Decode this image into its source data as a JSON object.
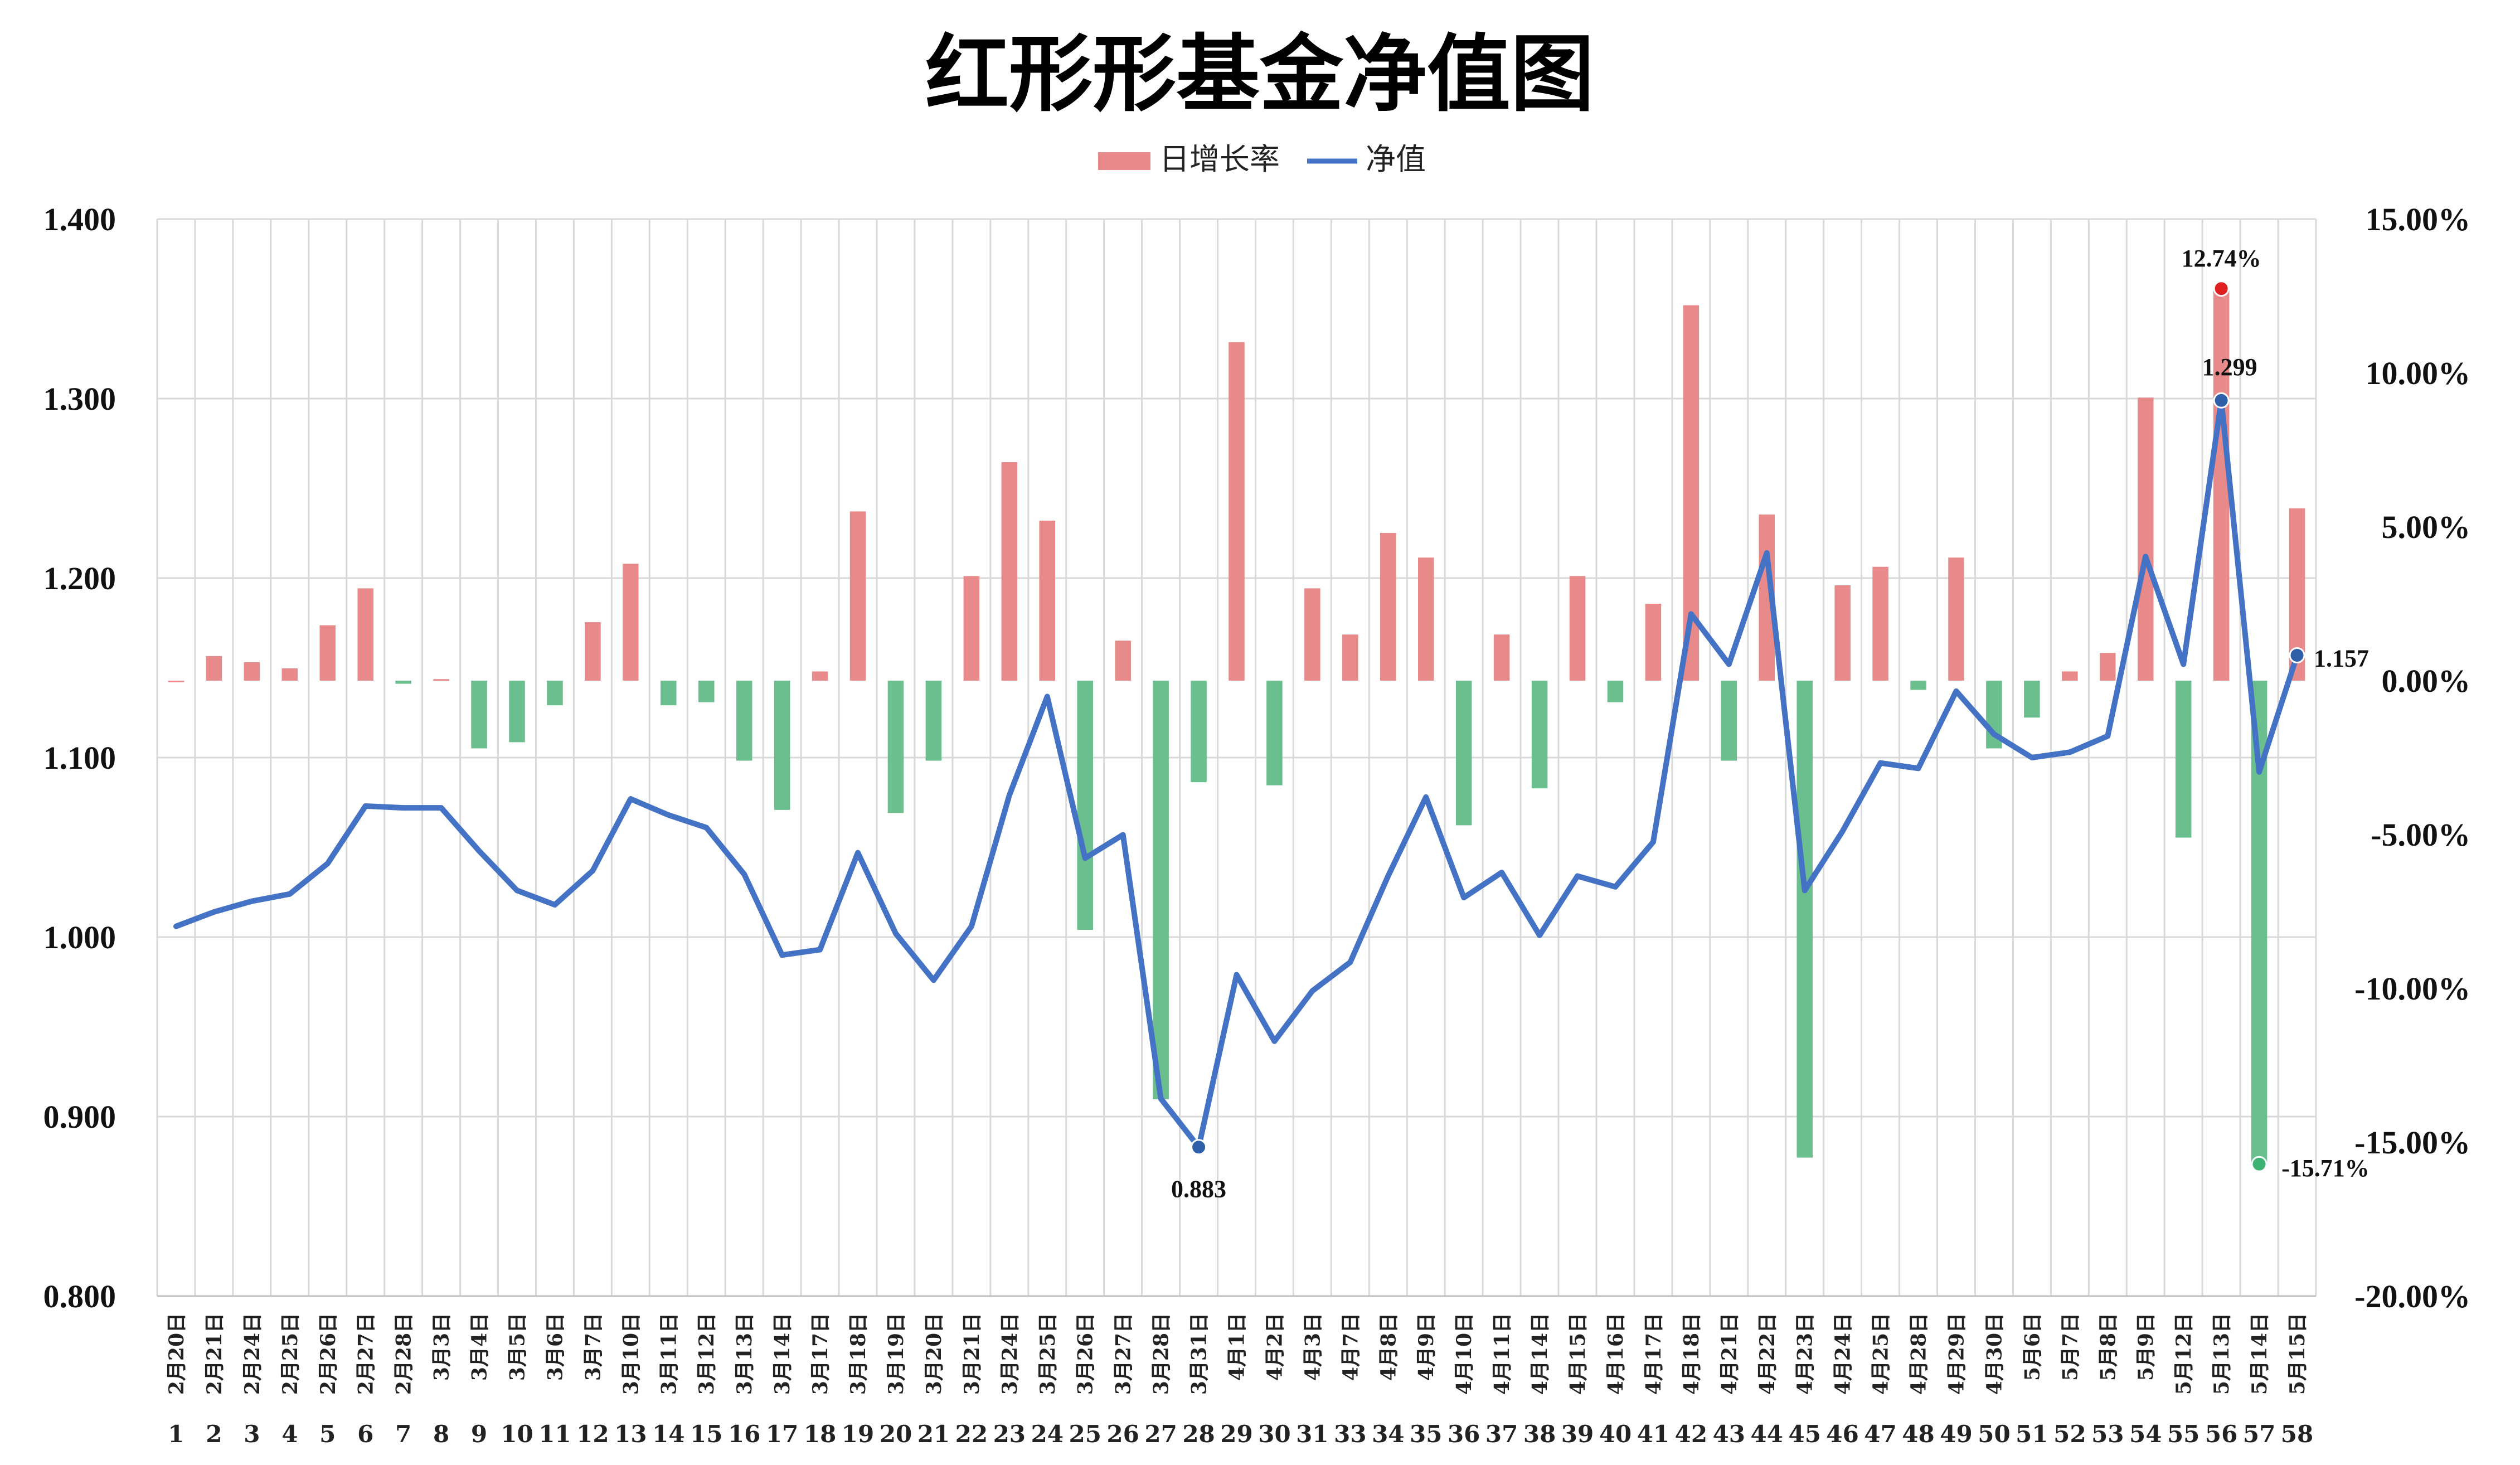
{
  "chart_data": {
    "type": "bar+line",
    "title": "红形形基金净值图",
    "legend": {
      "position": "top-center",
      "items": [
        {
          "label": "日增长率",
          "kind": "bar"
        },
        {
          "label": "净值",
          "kind": "line"
        }
      ]
    },
    "y_left": {
      "min": 0.8,
      "max": 1.4,
      "ticks": [
        "1.400",
        "1.300",
        "1.200",
        "1.100",
        "1.000",
        "0.900",
        "0.800"
      ]
    },
    "y_right": {
      "min": -20,
      "max": 15,
      "ticks": [
        "15.00%",
        "10.00%",
        "5.00%",
        "0.00%",
        "-5.00%",
        "-10.00%",
        "-15.00%",
        "-20.00%"
      ]
    },
    "grid": true,
    "colors": {
      "positive": "#e98a8a",
      "negative": "#6bbf8f",
      "line": "#4472c4",
      "grid": "#d9d9d9",
      "max_marker": "#e02020",
      "min_marker": "#3cb371",
      "nav_marker": "#2e5fa8"
    },
    "dates": [
      "2月20日",
      "2月21日",
      "2月24日",
      "2月25日",
      "2月26日",
      "2月27日",
      "2月28日",
      "3月3日",
      "3月4日",
      "3月5日",
      "3月6日",
      "3月7日",
      "3月10日",
      "3月11日",
      "3月12日",
      "3月13日",
      "3月14日",
      "3月17日",
      "3月18日",
      "3月19日",
      "3月20日",
      "3月21日",
      "3月24日",
      "3月25日",
      "3月26日",
      "3月27日",
      "3月28日",
      "3月31日",
      "4月1日",
      "4月2日",
      "4月3日",
      "4月7日",
      "4月8日",
      "4月9日",
      "4月10日",
      "4月11日",
      "4月14日",
      "4月15日",
      "4月16日",
      "4月17日",
      "4月18日",
      "4月21日",
      "4月22日",
      "4月23日",
      "4月24日",
      "4月25日",
      "4月28日",
      "4月29日",
      "4月30日",
      "5月6日",
      "5月7日",
      "5月8日",
      "5月9日",
      "5月12日",
      "5月13日",
      "5月14日",
      "5月15日"
    ],
    "indices": [
      "1",
      "2",
      "3",
      "4",
      "5",
      "6",
      "7",
      "8",
      "9",
      "10",
      "11",
      "12",
      "13",
      "14",
      "15",
      "16",
      "17",
      "18",
      "19",
      "20",
      "21",
      "22",
      "23",
      "24",
      "25",
      "26",
      "27",
      "28",
      "29",
      "30",
      "31",
      "33",
      "34",
      "35",
      "36",
      "37",
      "38",
      "39",
      "40",
      "41",
      "42",
      "43",
      "44",
      "45",
      "46",
      "47",
      "48",
      "49",
      "50",
      "51",
      "52",
      "53",
      "54",
      "55",
      "56",
      "57",
      "58"
    ],
    "series": [
      {
        "name": "日增长率",
        "type": "bar",
        "axis": "right",
        "unit": "%",
        "values": [
          0,
          0.8,
          0.6,
          0.4,
          1.8,
          3.0,
          -0.1,
          0.05,
          -2.2,
          -2.0,
          -0.8,
          1.9,
          3.8,
          -0.8,
          -0.7,
          -2.6,
          -4.2,
          0.3,
          5.5,
          -4.3,
          -2.6,
          3.4,
          7.1,
          5.2,
          -8.1,
          1.3,
          -13.6,
          -3.3,
          11.0,
          -3.4,
          3.0,
          1.5,
          4.8,
          4.0,
          -4.7,
          1.5,
          -3.5,
          3.4,
          -0.7,
          2.5,
          12.2,
          -2.6,
          5.4,
          -15.5,
          3.1,
          3.7,
          -0.3,
          4.0,
          -2.2,
          -1.2,
          0.3,
          0.9,
          9.2,
          -5.1,
          12.74,
          -15.71,
          5.6
        ]
      },
      {
        "name": "净值",
        "type": "line",
        "axis": "left",
        "values": [
          1.006,
          1.014,
          1.02,
          1.024,
          1.041,
          1.073,
          1.072,
          1.072,
          1.048,
          1.026,
          1.018,
          1.037,
          1.077,
          1.068,
          1.061,
          1.035,
          0.99,
          0.993,
          1.047,
          1.002,
          0.976,
          1.006,
          1.079,
          1.134,
          1.044,
          1.057,
          0.91,
          0.883,
          0.979,
          0.942,
          0.97,
          0.986,
          1.034,
          1.078,
          1.022,
          1.036,
          1.001,
          1.034,
          1.028,
          1.053,
          1.18,
          1.152,
          1.214,
          1.026,
          1.059,
          1.097,
          1.094,
          1.137,
          1.113,
          1.1,
          1.103,
          1.112,
          1.212,
          1.152,
          1.299,
          1.092,
          1.157
        ]
      }
    ],
    "annotations": [
      {
        "text": "12.74%",
        "series": "日增长率",
        "index": 54,
        "marker": "max"
      },
      {
        "text": "-15.71%",
        "series": "日增长率",
        "index": 55,
        "marker": "min"
      },
      {
        "text": "1.299",
        "series": "净值",
        "index": 54,
        "marker": "nav"
      },
      {
        "text": "0.883",
        "series": "净值",
        "index": 27,
        "marker": "nav-low"
      },
      {
        "text": "1.157",
        "series": "净值",
        "index": 56,
        "marker": "nav-last"
      }
    ]
  }
}
